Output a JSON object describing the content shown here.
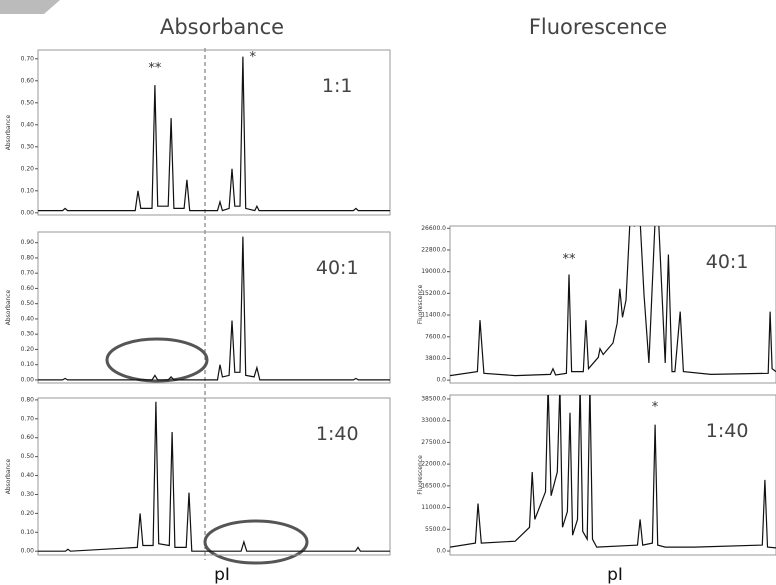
{
  "headers": [
    "Absorbance",
    "Fluorescence"
  ],
  "x_labels": [
    "pI",
    "pI"
  ],
  "chart_data": [
    {
      "type": "line",
      "title": "1:1",
      "ylabel": "Absorbance",
      "xlim": [
        0,
        100
      ],
      "ylim": [
        -0.01,
        0.74
      ],
      "yticks": [
        {
          "value": 0,
          "label": "0.00"
        },
        {
          "value": 0.1,
          "label": "0.10"
        },
        {
          "value": 0.2,
          "label": "0.20"
        },
        {
          "value": 0.3,
          "label": "0.30"
        },
        {
          "value": 0.4,
          "label": "0.40"
        },
        {
          "value": 0.5,
          "label": "0.50"
        },
        {
          "value": 0.6,
          "label": "0.60"
        },
        {
          "value": 0.7,
          "label": "0.70"
        }
      ],
      "annotations": [
        {
          "text": "**",
          "x": 33.2,
          "y": 0.64
        },
        {
          "text": "*",
          "x": 61,
          "y": 0.69
        }
      ],
      "series": [
        {
          "color": "#111111",
          "x": [
            0,
            7,
            7.7,
            8.4,
            27.6,
            28.4,
            29.2,
            32.4,
            33.2,
            34,
            37,
            37.8,
            38.6,
            41.5,
            42.3,
            43.1,
            51,
            51.7,
            52.4,
            54.3,
            55.1,
            55.9,
            57.4,
            58.2,
            59,
            61.6,
            62.2,
            62.8,
            89.6,
            90.3,
            91,
            100
          ],
          "values": [
            0.01,
            0.01,
            0.02,
            0.01,
            0.01,
            0.1,
            0.02,
            0.02,
            0.58,
            0.03,
            0.03,
            0.43,
            0.02,
            0.02,
            0.15,
            0.01,
            0.01,
            0.05,
            0.01,
            0.02,
            0.2,
            0.03,
            0.03,
            0.71,
            0.02,
            0.01,
            0.03,
            0.01,
            0.01,
            0.02,
            0.01,
            0.01
          ]
        }
      ]
    },
    {
      "type": "line",
      "title": "40:1",
      "ylabel": "Absorbance",
      "xlim": [
        0,
        100
      ],
      "ylim": [
        -0.02,
        0.97
      ],
      "yticks": [
        {
          "value": 0,
          "label": "0.00"
        },
        {
          "value": 0.1,
          "label": "0.10"
        },
        {
          "value": 0.2,
          "label": "0.20"
        },
        {
          "value": 0.3,
          "label": "0.30"
        },
        {
          "value": 0.4,
          "label": "0.40"
        },
        {
          "value": 0.5,
          "label": "0.50"
        },
        {
          "value": 0.6,
          "label": "0.60"
        },
        {
          "value": 0.7,
          "label": "0.70"
        },
        {
          "value": 0.8,
          "label": "0.80"
        },
        {
          "value": 0.9,
          "label": "0.90"
        }
      ],
      "annotations": [],
      "series": [
        {
          "color": "#111111",
          "x": [
            0,
            7,
            7.7,
            8.4,
            32.4,
            33.2,
            34,
            37,
            37.8,
            38.6,
            51,
            51.7,
            52.4,
            54.3,
            55.1,
            55.9,
            57.4,
            58.2,
            59,
            61.4,
            62.2,
            63,
            89.6,
            90.3,
            91,
            100
          ],
          "values": [
            0,
            0,
            0.01,
            0,
            0,
            0.03,
            0,
            0,
            0.02,
            0,
            0,
            0.1,
            0.02,
            0.03,
            0.39,
            0.05,
            0.05,
            0.94,
            0.03,
            0.02,
            0.08,
            0,
            0,
            0.01,
            0,
            0
          ]
        }
      ]
    },
    {
      "type": "line",
      "title": "1:40",
      "ylabel": "Absorbance",
      "xlim": [
        0,
        100
      ],
      "ylim": [
        -0.02,
        0.81
      ],
      "yticks": [
        {
          "value": 0,
          "label": "0.00"
        },
        {
          "value": 0.1,
          "label": "0.10"
        },
        {
          "value": 0.2,
          "label": "0.20"
        },
        {
          "value": 0.3,
          "label": "0.30"
        },
        {
          "value": 0.4,
          "label": "0.40"
        },
        {
          "value": 0.5,
          "label": "0.50"
        },
        {
          "value": 0.6,
          "label": "0.60"
        },
        {
          "value": 0.7,
          "label": "0.70"
        },
        {
          "value": 0.8,
          "label": "0.80"
        }
      ],
      "annotations": [],
      "series": [
        {
          "color": "#111111",
          "x": [
            0,
            7.8,
            8.5,
            9.2,
            28.2,
            29,
            29.8,
            32.7,
            33.5,
            34.3,
            37.3,
            38.1,
            38.9,
            42.1,
            42.9,
            43.7,
            57.7,
            58.5,
            59.3,
            90.2,
            90.9,
            91.6,
            100
          ],
          "values": [
            0,
            0,
            0.01,
            0,
            0.02,
            0.2,
            0.03,
            0.03,
            0.79,
            0.04,
            0.03,
            0.63,
            0.02,
            0.02,
            0.31,
            0,
            0,
            0.05,
            0,
            0,
            0.02,
            0,
            0
          ]
        }
      ]
    },
    {
      "type": "line",
      "title": "40:1",
      "ylabel": "Fluorescence",
      "xlim": [
        0,
        100
      ],
      "ylim": [
        -500,
        27000
      ],
      "yticks": [
        {
          "value": 0,
          "label": "0.0"
        },
        {
          "value": 3800,
          "label": "3800.0"
        },
        {
          "value": 7600,
          "label": "7600.0"
        },
        {
          "value": 11400,
          "label": "11400.0"
        },
        {
          "value": 15200,
          "label": "15200.0"
        },
        {
          "value": 19000,
          "label": "19000.0"
        },
        {
          "value": 22800,
          "label": "22800.0"
        },
        {
          "value": 26600,
          "label": "26600.0"
        }
      ],
      "annotations": [
        {
          "text": "**",
          "x": 36.5,
          "y": 20500
        }
      ],
      "series": [
        {
          "color": "#111111",
          "x": [
            0,
            8.4,
            9.2,
            10.4,
            20,
            30.8,
            31.6,
            32.4,
            35.7,
            36.5,
            37.3,
            40.9,
            41.7,
            42.5,
            45.5,
            46,
            47,
            50,
            51.3,
            52.1,
            52.9,
            54,
            55.2,
            56.5,
            58.3,
            59.5,
            61,
            62.9,
            64,
            66,
            67,
            68.1,
            69,
            70.6,
            71.6,
            80,
            97.6,
            98.2,
            98.8,
            100
          ],
          "values": [
            800,
            1500,
            10500,
            1200,
            800,
            1000,
            2000,
            900,
            1200,
            18500,
            1500,
            1500,
            10500,
            2000,
            4000,
            5500,
            4500,
            6500,
            10000,
            16000,
            11000,
            14000,
            28000,
            27000,
            28000,
            15000,
            3000,
            28000,
            28000,
            3000,
            22000,
            1500,
            1500,
            12000,
            1500,
            1000,
            1200,
            12000,
            2000,
            1500
          ]
        }
      ]
    },
    {
      "type": "line",
      "title": "1:40",
      "ylabel": "Fluorescence",
      "xlim": [
        0,
        100
      ],
      "ylim": [
        -1000,
        39500
      ],
      "yticks": [
        {
          "value": 0,
          "label": "0.0"
        },
        {
          "value": 5500,
          "label": "5500.0"
        },
        {
          "value": 11000,
          "label": "11000.0"
        },
        {
          "value": 16500,
          "label": "16500.0"
        },
        {
          "value": 22000,
          "label": "22000.0"
        },
        {
          "value": 27500,
          "label": "27500.0"
        },
        {
          "value": 33000,
          "label": "33000.0"
        },
        {
          "value": 38500,
          "label": "38500.0"
        }
      ],
      "annotations": [
        {
          "text": "*",
          "x": 62.9,
          "y": 35500
        }
      ],
      "series": [
        {
          "color": "#111111",
          "x": [
            0,
            7.8,
            8.6,
            9.6,
            20,
            24.4,
            25.2,
            26,
            29.3,
            30.1,
            31,
            32.9,
            33.7,
            34.5,
            36,
            36.8,
            37.6,
            39.1,
            39.9,
            40.7,
            42.1,
            42.9,
            43.7,
            45,
            57.5,
            58.3,
            59.1,
            62.1,
            62.9,
            63.7,
            66,
            75,
            95.8,
            96.6,
            97.4,
            100
          ],
          "values": [
            1000,
            2000,
            12000,
            2000,
            2500,
            6000,
            20000,
            8000,
            15000,
            42000,
            14000,
            20000,
            42000,
            6000,
            10000,
            35000,
            4000,
            8000,
            42000,
            5000,
            3000,
            42000,
            3000,
            1000,
            1500,
            8000,
            1500,
            2000,
            32000,
            1500,
            1000,
            1000,
            1500,
            18000,
            1000,
            800
          ]
        }
      ]
    }
  ]
}
